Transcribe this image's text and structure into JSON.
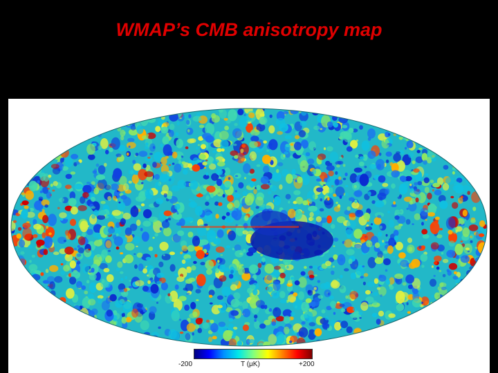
{
  "slide": {
    "title": "WMAP’s CMB anisotropy map"
  },
  "colorbar": {
    "min_label": "-200",
    "unit_label": "T (μK)",
    "max_label": "+200",
    "colors": [
      "#000080",
      "#0000ff",
      "#0090ff",
      "#00e8e8",
      "#80ff80",
      "#ffff00",
      "#ff8000",
      "#ff0000",
      "#800000"
    ]
  },
  "map": {
    "background": "#ffffff",
    "ellipse_fill": "#22b8c8"
  }
}
